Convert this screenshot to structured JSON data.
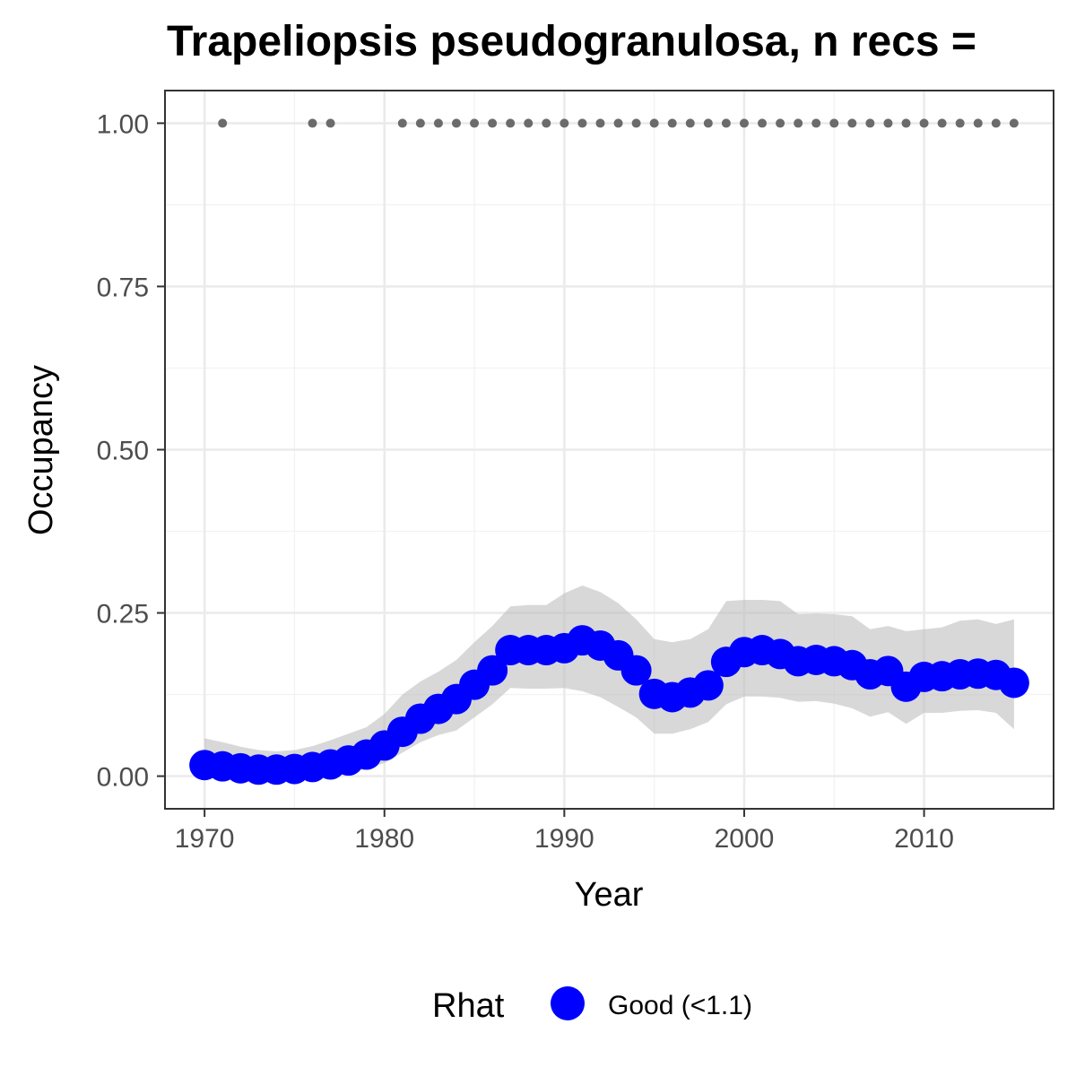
{
  "chart_data": {
    "type": "line",
    "title": "Trapeliopsis pseudogranulosa, n recs = ",
    "xlabel": "Year",
    "ylabel": "Occupancy",
    "xlim": [
      1967.8,
      2017.2
    ],
    "ylim": [
      -0.05,
      1.05
    ],
    "x_ticks": [
      1970,
      1980,
      1990,
      2000,
      2010
    ],
    "x_tick_labels": [
      "1970",
      "1980",
      "1990",
      "2000",
      "2010"
    ],
    "y_ticks": [
      0,
      0.25,
      0.5,
      0.75,
      1
    ],
    "y_tick_labels": [
      "0.00",
      "0.25",
      "0.50",
      "0.75",
      "1.00"
    ],
    "grid": true,
    "legend": {
      "title": "Rhat",
      "position": "bottom",
      "entries": [
        {
          "label": "Good (<1.1)",
          "color": "#0000ff"
        }
      ]
    },
    "colors": {
      "points": "#0000ff",
      "ribbon": "#bebebe",
      "observed": "#6b6b6b"
    },
    "series": [
      {
        "name": "Good (<1.1)",
        "x": [
          1970,
          1971,
          1972,
          1973,
          1974,
          1975,
          1976,
          1977,
          1978,
          1979,
          1980,
          1981,
          1982,
          1983,
          1984,
          1985,
          1986,
          1987,
          1988,
          1989,
          1990,
          1991,
          1992,
          1993,
          1994,
          1995,
          1996,
          1997,
          1998,
          1999,
          2000,
          2001,
          2002,
          2003,
          2004,
          2005,
          2006,
          2007,
          2008,
          2009,
          2010,
          2011,
          2012,
          2013,
          2014,
          2015
        ],
        "mean": [
          0.017,
          0.015,
          0.012,
          0.01,
          0.01,
          0.011,
          0.014,
          0.018,
          0.024,
          0.033,
          0.047,
          0.068,
          0.088,
          0.103,
          0.118,
          0.14,
          0.162,
          0.193,
          0.193,
          0.193,
          0.196,
          0.208,
          0.2,
          0.185,
          0.162,
          0.126,
          0.121,
          0.128,
          0.139,
          0.175,
          0.19,
          0.193,
          0.187,
          0.176,
          0.178,
          0.176,
          0.17,
          0.156,
          0.161,
          0.137,
          0.152,
          0.153,
          0.156,
          0.157,
          0.155,
          0.143
        ],
        "lower": [
          0.003,
          0.002,
          0.001,
          0.0,
          0.0,
          0.001,
          0.002,
          0.003,
          0.006,
          0.011,
          0.02,
          0.036,
          0.052,
          0.063,
          0.07,
          0.09,
          0.11,
          0.135,
          0.134,
          0.134,
          0.135,
          0.13,
          0.121,
          0.106,
          0.09,
          0.065,
          0.065,
          0.072,
          0.083,
          0.11,
          0.122,
          0.122,
          0.12,
          0.114,
          0.115,
          0.111,
          0.104,
          0.091,
          0.098,
          0.08,
          0.097,
          0.097,
          0.1,
          0.101,
          0.097,
          0.072
        ],
        "upper": [
          0.058,
          0.052,
          0.045,
          0.04,
          0.038,
          0.04,
          0.046,
          0.055,
          0.065,
          0.075,
          0.095,
          0.125,
          0.145,
          0.16,
          0.178,
          0.205,
          0.23,
          0.26,
          0.262,
          0.262,
          0.28,
          0.292,
          0.282,
          0.265,
          0.24,
          0.21,
          0.205,
          0.21,
          0.225,
          0.268,
          0.27,
          0.27,
          0.268,
          0.248,
          0.249,
          0.248,
          0.245,
          0.225,
          0.23,
          0.222,
          0.225,
          0.228,
          0.238,
          0.24,
          0.233,
          0.24
        ]
      }
    ],
    "observed_presence": {
      "y": 1,
      "x": [
        1971,
        1976,
        1977,
        1981,
        1982,
        1983,
        1984,
        1985,
        1986,
        1987,
        1988,
        1989,
        1990,
        1991,
        1992,
        1993,
        1994,
        1995,
        1996,
        1997,
        1998,
        1999,
        2000,
        2001,
        2002,
        2003,
        2004,
        2005,
        2006,
        2007,
        2008,
        2009,
        2010,
        2011,
        2012,
        2013,
        2014,
        2015
      ]
    }
  }
}
